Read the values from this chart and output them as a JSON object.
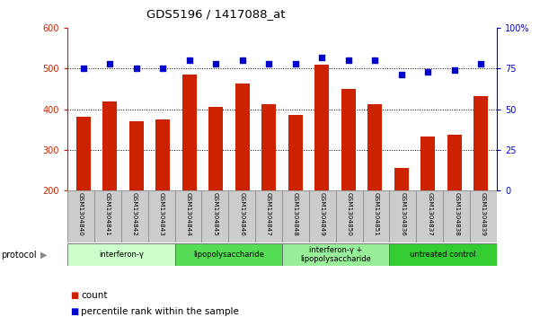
{
  "title": "GDS5196 / 1417088_at",
  "samples": [
    "GSM1304840",
    "GSM1304841",
    "GSM1304842",
    "GSM1304843",
    "GSM1304844",
    "GSM1304845",
    "GSM1304846",
    "GSM1304847",
    "GSM1304848",
    "GSM1304849",
    "GSM1304850",
    "GSM1304851",
    "GSM1304836",
    "GSM1304837",
    "GSM1304838",
    "GSM1304839"
  ],
  "counts": [
    382,
    418,
    370,
    375,
    485,
    405,
    462,
    412,
    385,
    510,
    450,
    412,
    255,
    332,
    337,
    432
  ],
  "percentile_ranks": [
    75,
    78,
    75,
    75,
    80,
    78,
    80,
    78,
    78,
    82,
    80,
    80,
    71,
    73,
    74,
    78
  ],
  "groups": [
    {
      "label": "interferon-γ",
      "start": 0,
      "end": 4,
      "color": "#ccffcc"
    },
    {
      "label": "lipopolysaccharide",
      "start": 4,
      "end": 8,
      "color": "#55dd55"
    },
    {
      "label": "interferon-γ +\nlipopolysaccharide",
      "start": 8,
      "end": 12,
      "color": "#99ee99"
    },
    {
      "label": "untreated control",
      "start": 12,
      "end": 16,
      "color": "#33cc33"
    }
  ],
  "ylim_left": [
    200,
    600
  ],
  "ylim_right": [
    0,
    100
  ],
  "yticks_left": [
    200,
    300,
    400,
    500,
    600
  ],
  "yticks_right": [
    0,
    25,
    50,
    75,
    100
  ],
  "bar_color": "#cc2200",
  "dot_color": "#0000cc",
  "grid_color": "#000000",
  "bg_color": "#ffffff",
  "sample_label_bg": "#cccccc",
  "left_axis_color": "#cc2200",
  "right_axis_color": "#0000cc"
}
